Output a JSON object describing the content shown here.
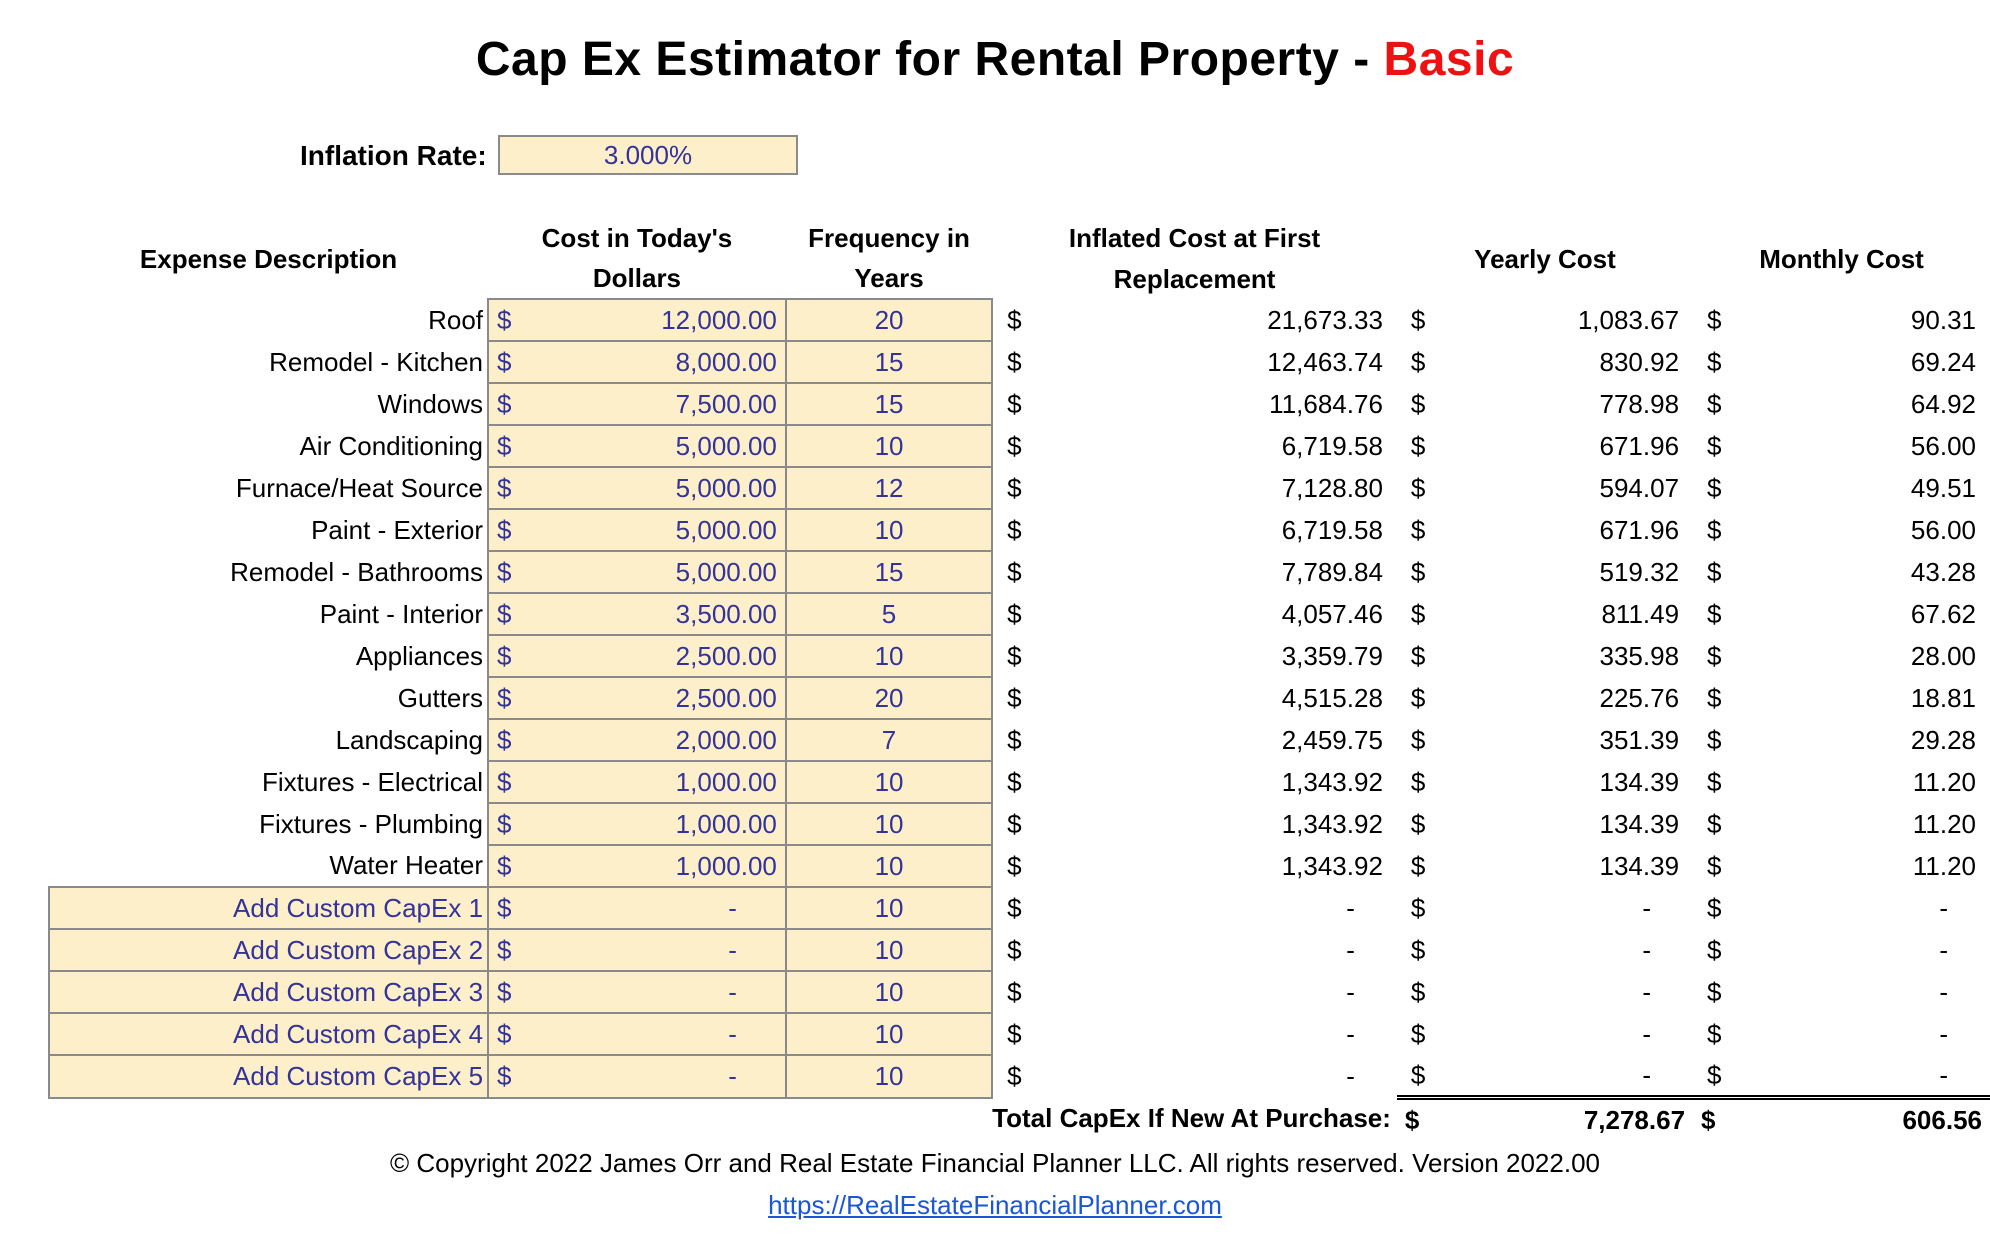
{
  "title": {
    "main": "Cap Ex Estimator for Rental Property - ",
    "accent": "Basic"
  },
  "inflation": {
    "label": "Inflation Rate:",
    "value": "3.000%"
  },
  "headers": {
    "desc": "Expense Description",
    "cost_line1": "Cost in Today's",
    "cost_line2": "Dollars",
    "freq_line1": "Frequency in",
    "freq_line2": "Years",
    "inflated_line1": "Inflated Cost at First",
    "inflated_line2": "Replacement",
    "yearly": "Yearly Cost",
    "monthly": "Monthly Cost"
  },
  "currency": "$",
  "rows": [
    {
      "desc": "Roof",
      "cost": "12,000.00",
      "freq": "20",
      "inflated": "21,673.33",
      "yearly": "1,083.67",
      "monthly": "90.31"
    },
    {
      "desc": "Remodel - Kitchen",
      "cost": "8,000.00",
      "freq": "15",
      "inflated": "12,463.74",
      "yearly": "830.92",
      "monthly": "69.24"
    },
    {
      "desc": "Windows",
      "cost": "7,500.00",
      "freq": "15",
      "inflated": "11,684.76",
      "yearly": "778.98",
      "monthly": "64.92"
    },
    {
      "desc": "Air Conditioning",
      "cost": "5,000.00",
      "freq": "10",
      "inflated": "6,719.58",
      "yearly": "671.96",
      "monthly": "56.00"
    },
    {
      "desc": "Furnace/Heat Source",
      "cost": "5,000.00",
      "freq": "12",
      "inflated": "7,128.80",
      "yearly": "594.07",
      "monthly": "49.51"
    },
    {
      "desc": "Paint - Exterior",
      "cost": "5,000.00",
      "freq": "10",
      "inflated": "6,719.58",
      "yearly": "671.96",
      "monthly": "56.00"
    },
    {
      "desc": "Remodel - Bathrooms",
      "cost": "5,000.00",
      "freq": "15",
      "inflated": "7,789.84",
      "yearly": "519.32",
      "monthly": "43.28"
    },
    {
      "desc": "Paint - Interior",
      "cost": "3,500.00",
      "freq": "5",
      "inflated": "4,057.46",
      "yearly": "811.49",
      "monthly": "67.62"
    },
    {
      "desc": "Appliances",
      "cost": "2,500.00",
      "freq": "10",
      "inflated": "3,359.79",
      "yearly": "335.98",
      "monthly": "28.00"
    },
    {
      "desc": "Gutters",
      "cost": "2,500.00",
      "freq": "20",
      "inflated": "4,515.28",
      "yearly": "225.76",
      "monthly": "18.81"
    },
    {
      "desc": "Landscaping",
      "cost": "2,000.00",
      "freq": "7",
      "inflated": "2,459.75",
      "yearly": "351.39",
      "monthly": "29.28"
    },
    {
      "desc": "Fixtures - Electrical",
      "cost": "1,000.00",
      "freq": "10",
      "inflated": "1,343.92",
      "yearly": "134.39",
      "monthly": "11.20"
    },
    {
      "desc": "Fixtures - Plumbing",
      "cost": "1,000.00",
      "freq": "10",
      "inflated": "1,343.92",
      "yearly": "134.39",
      "monthly": "11.20"
    },
    {
      "desc": "Water Heater",
      "cost": "1,000.00",
      "freq": "10",
      "inflated": "1,343.92",
      "yearly": "134.39",
      "monthly": "11.20"
    },
    {
      "desc": "Add Custom CapEx 1",
      "cost": "-",
      "freq": "10",
      "inflated": "-",
      "yearly": "-",
      "monthly": "-",
      "custom": true
    },
    {
      "desc": "Add Custom CapEx 2",
      "cost": "-",
      "freq": "10",
      "inflated": "-",
      "yearly": "-",
      "monthly": "-",
      "custom": true
    },
    {
      "desc": "Add Custom CapEx 3",
      "cost": "-",
      "freq": "10",
      "inflated": "-",
      "yearly": "-",
      "monthly": "-",
      "custom": true
    },
    {
      "desc": "Add Custom CapEx 4",
      "cost": "-",
      "freq": "10",
      "inflated": "-",
      "yearly": "-",
      "monthly": "-",
      "custom": true
    },
    {
      "desc": "Add Custom CapEx 5",
      "cost": "-",
      "freq": "10",
      "inflated": "-",
      "yearly": "-",
      "monthly": "-",
      "custom": true
    }
  ],
  "total": {
    "label": "Total CapEx If New At Purchase:",
    "yearly": "7,278.67",
    "monthly": "606.56"
  },
  "footer": {
    "copyright": "© Copyright 2022 James Orr and Real Estate Financial Planner LLC. All rights reserved. Version 2022.00",
    "link": "https://RealEstateFinancialPlanner.com"
  },
  "colors": {
    "input_fill": "#fdefc9",
    "input_text": "#333399",
    "accent": "#ee1111",
    "link": "#1a56d6"
  }
}
